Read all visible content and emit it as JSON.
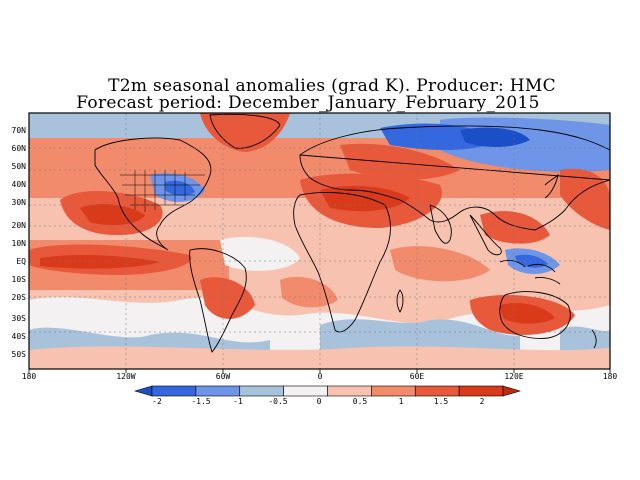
{
  "title_line1": "T2m seasonal anomalies (grad K). Producer: HMC",
  "title_line2": "Forecast period:  December_January_February_2015",
  "lat_labels": [
    "70N",
    "60N",
    "50N",
    "40N",
    "30N",
    "20N",
    "10N",
    "EQ",
    "10S",
    "20S",
    "30S",
    "40S",
    "50S"
  ],
  "lon_labels": [
    "180",
    "120W",
    "60W",
    "0",
    "60E",
    "120E",
    "180"
  ],
  "colorbar": {
    "tick_labels": [
      "-2",
      "-1.5",
      "-1",
      "-0.5",
      "0",
      "0.5",
      "1",
      "1.5",
      "2"
    ],
    "colors": [
      "#1a4fc8",
      "#3568de",
      "#6f95e8",
      "#a9c2dc",
      "#f3f1f1",
      "#f7c2b0",
      "#f28a6c",
      "#e8583a",
      "#d93a1a",
      "#c02a10"
    ]
  },
  "anomaly_fields": {
    "strong_warm": [
      "northeast Pacific",
      "tropical Pacific",
      "Greenland",
      "North Africa & Middle East",
      "western Pacific",
      "Australia region"
    ],
    "cool": [
      "Siberia & northern Russia",
      "eastern North America",
      "Indonesia region",
      "Southern Ocean south of Africa"
    ]
  }
}
